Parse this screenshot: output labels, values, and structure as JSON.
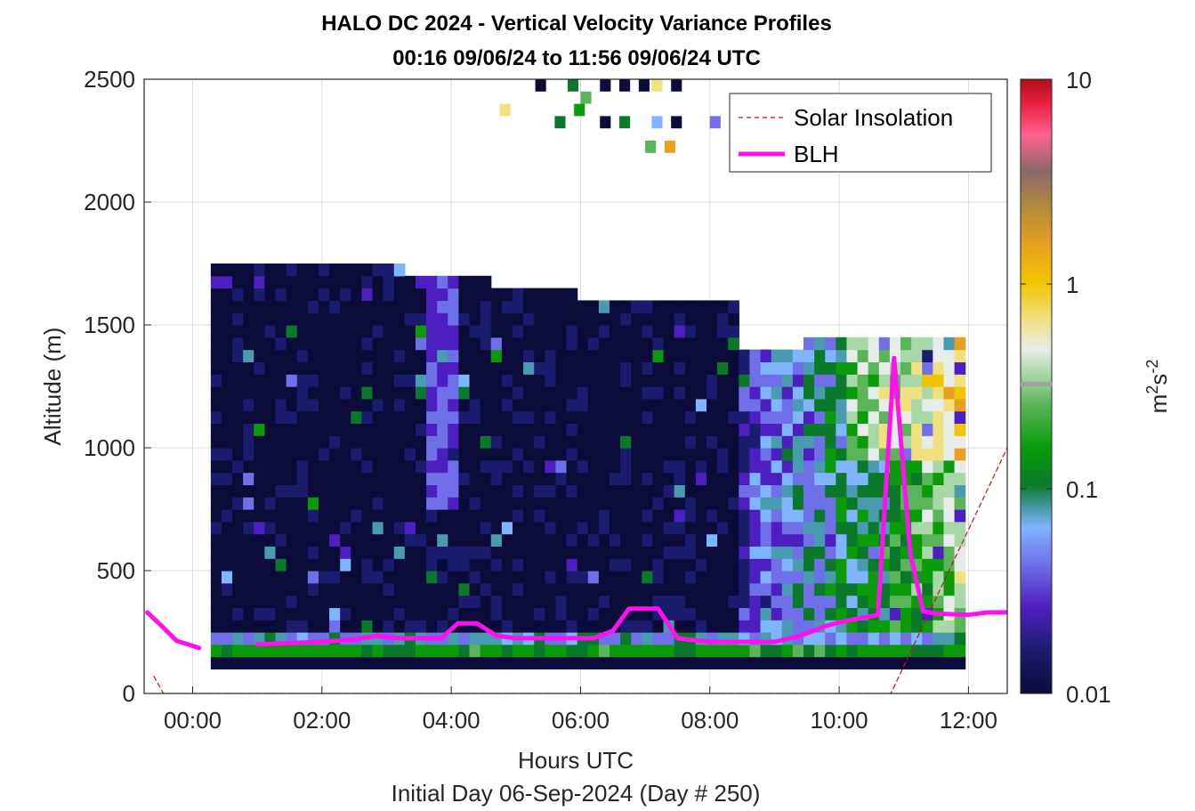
{
  "chart_data": {
    "type": "heatmap",
    "title": "HALO DC 2024 - Vertical Velocity Variance Profiles",
    "subtitle": "00:16 09/06/24 to 11:56 09/06/24  UTC",
    "xlabel": "Hours UTC",
    "xlabel2": "Initial Day 06-Sep-2024 (Day # 250)",
    "ylabel": "Altitude (m)",
    "xlim": [
      -0.75,
      12.6
    ],
    "ylim": [
      0,
      2500
    ],
    "x_ticks": [
      0,
      2,
      4,
      6,
      8,
      10,
      12
    ],
    "x_tick_labels": [
      "00:00",
      "02:00",
      "04:00",
      "06:00",
      "08:00",
      "10:00",
      "12:00"
    ],
    "y_ticks": [
      0,
      500,
      1000,
      1500,
      2000,
      2500
    ],
    "y_tick_labels": [
      "0",
      "500",
      "1000",
      "1500",
      "2000",
      "2500"
    ],
    "grid": true,
    "legend_position": "top-right",
    "colorbar": {
      "scale": "log",
      "range": [
        0.01,
        10
      ],
      "ticks": [
        0.01,
        0.1,
        1,
        10
      ],
      "tick_labels": [
        "0.01",
        "0.1",
        "1",
        "10"
      ],
      "unit_base": "m",
      "unit_sup1": "2",
      "unit_mid": "s",
      "unit_sup2": "-2"
    },
    "heatmap_grid": {
      "time_start_hours": 0.28,
      "time_bin_hours": 0.1667,
      "alt_start_m": 100,
      "alt_bin_m": 50,
      "n_time_bins": 70,
      "n_alt_bins": 33
    },
    "series": [
      {
        "name": "Solar Insolation",
        "color": "#d01010",
        "style": "dashed",
        "x": [
          -0.6,
          -0.45,
          10.8,
          12.6
        ],
        "y": [
          70,
          0,
          0,
          1000
        ]
      },
      {
        "name": "BLH",
        "color": "#ff10f0",
        "style": "solid",
        "x": [
          -0.7,
          -0.5,
          -0.25,
          0.1,
          0.45,
          1.0,
          1.5,
          2.0,
          2.5,
          2.85,
          3.2,
          3.5,
          3.85,
          4.1,
          4.4,
          4.7,
          5.0,
          5.4,
          5.8,
          6.2,
          6.5,
          6.75,
          7.2,
          7.5,
          8.0,
          8.5,
          9.0,
          9.4,
          9.8,
          10.0,
          10.3,
          10.6,
          10.85,
          11.1,
          11.3,
          11.5,
          12.0,
          12.3,
          12.6
        ],
        "y": [
          330,
          280,
          215,
          185,
          null,
          200,
          205,
          210,
          220,
          235,
          225,
          225,
          225,
          285,
          285,
          235,
          225,
          225,
          225,
          225,
          255,
          345,
          345,
          225,
          210,
          210,
          210,
          235,
          275,
          290,
          305,
          320,
          1365,
          570,
          335,
          325,
          320,
          330,
          330
        ]
      }
    ]
  }
}
